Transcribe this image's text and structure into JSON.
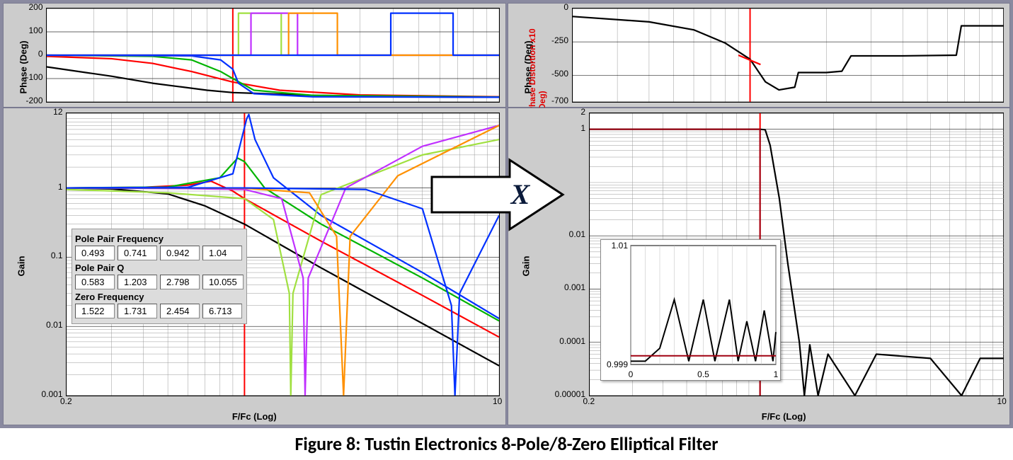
{
  "caption": "Figure 8: Tustin Electronics 8-Pole/8-Zero Elliptical Filter",
  "arrow_letter": "X",
  "colors": {
    "panel_bg": "#cccccc",
    "plot_bg": "#ffffff",
    "grid_major": "#000000",
    "grid_minor": "#aaaaaa",
    "axis_text": "#000000",
    "red_axis_text": "#e00000"
  },
  "series_colors": {
    "black": "#000000",
    "red": "#ff0000",
    "green": "#00b400",
    "blue": "#0030ff",
    "magenta": "#c030ff",
    "orange": "#ff9000",
    "lime": "#a0e040",
    "darkred": "#a00010"
  },
  "left_phase": {
    "title": "Phase (Deg)",
    "ylim": [
      -200,
      200
    ],
    "yticks": [
      -200,
      -100,
      0,
      100,
      200
    ],
    "xlim": [
      0.2,
      10
    ],
    "xscale": "log",
    "cursor_x": 1.0,
    "series": [
      {
        "color": "black",
        "pts": [
          [
            0.2,
            -50
          ],
          [
            0.35,
            -90
          ],
          [
            0.5,
            -120
          ],
          [
            0.8,
            -150
          ],
          [
            1,
            -160
          ],
          [
            2,
            -172
          ],
          [
            5,
            -178
          ],
          [
            10,
            -180
          ]
        ]
      },
      {
        "color": "red",
        "pts": [
          [
            0.2,
            -5
          ],
          [
            0.35,
            -15
          ],
          [
            0.5,
            -35
          ],
          [
            0.7,
            -70
          ],
          [
            1,
            -115
          ],
          [
            1.5,
            -150
          ],
          [
            3,
            -170
          ],
          [
            10,
            -178
          ]
        ]
      },
      {
        "color": "green",
        "pts": [
          [
            0.2,
            0
          ],
          [
            0.5,
            -5
          ],
          [
            0.7,
            -20
          ],
          [
            0.9,
            -70
          ],
          [
            1,
            -100
          ],
          [
            1.2,
            -150
          ],
          [
            2,
            -172
          ],
          [
            10,
            -179
          ]
        ]
      },
      {
        "color": "blue",
        "pts": [
          [
            0.2,
            0
          ],
          [
            0.7,
            -3
          ],
          [
            0.9,
            -20
          ],
          [
            1,
            -60
          ],
          [
            1.05,
            -120
          ],
          [
            1.2,
            -165
          ],
          [
            2,
            -178
          ],
          [
            10,
            -180
          ]
        ]
      },
      {
        "color": "lime",
        "pts": [
          [
            0.2,
            0
          ],
          [
            1,
            0
          ],
          [
            1.05,
            180
          ],
          [
            1.5,
            180
          ],
          [
            1.52,
            0
          ],
          [
            10,
            0
          ]
        ],
        "step": true
      },
      {
        "color": "magenta",
        "pts": [
          [
            0.2,
            0
          ],
          [
            1.15,
            0
          ],
          [
            1.17,
            180
          ],
          [
            1.73,
            180
          ],
          [
            1.75,
            0
          ],
          [
            10,
            0
          ]
        ],
        "step": true
      },
      {
        "color": "orange",
        "pts": [
          [
            0.2,
            0
          ],
          [
            1.6,
            0
          ],
          [
            1.62,
            180
          ],
          [
            2.45,
            180
          ],
          [
            2.47,
            0
          ],
          [
            10,
            0
          ]
        ],
        "step": true
      },
      {
        "color": "blue",
        "pts": [
          [
            0.2,
            0
          ],
          [
            3.9,
            0
          ],
          [
            3.92,
            180
          ],
          [
            6.7,
            180
          ],
          [
            6.72,
            0
          ],
          [
            10,
            0
          ]
        ],
        "step": true
      }
    ]
  },
  "left_gain": {
    "ylabel": "Gain",
    "xlabel": "F/Fc (Log)",
    "ylim": [
      0.001,
      12
    ],
    "yticks": [
      0.001,
      0.01,
      0.1,
      1,
      12
    ],
    "ytick_labels": [
      "0.001",
      "0.01",
      "0.1",
      "1",
      "12"
    ],
    "xlim": [
      0.2,
      10
    ],
    "xticks": [
      0.2,
      10
    ],
    "xscale": "log",
    "yscale": "log",
    "cursor_x": 1.0,
    "series": [
      {
        "color": "black",
        "pts": [
          [
            0.2,
            1
          ],
          [
            0.3,
            0.97
          ],
          [
            0.5,
            0.82
          ],
          [
            0.7,
            0.55
          ],
          [
            1,
            0.3
          ],
          [
            2,
            0.07
          ],
          [
            5,
            0.011
          ],
          [
            10,
            0.0027
          ]
        ]
      },
      {
        "color": "red",
        "pts": [
          [
            0.2,
            1
          ],
          [
            0.4,
            1.02
          ],
          [
            0.6,
            1.1
          ],
          [
            0.74,
            1.25
          ],
          [
            0.9,
            0.9
          ],
          [
            1,
            0.7
          ],
          [
            2,
            0.17
          ],
          [
            5,
            0.028
          ],
          [
            10,
            0.007
          ]
        ]
      },
      {
        "color": "green",
        "pts": [
          [
            0.2,
            1
          ],
          [
            0.5,
            1.03
          ],
          [
            0.8,
            1.4
          ],
          [
            0.94,
            2.7
          ],
          [
            1,
            2.4
          ],
          [
            1.2,
            1.0
          ],
          [
            2,
            0.3
          ],
          [
            5,
            0.05
          ],
          [
            10,
            0.012
          ]
        ]
      },
      {
        "color": "blue",
        "pts": [
          [
            0.2,
            1
          ],
          [
            0.6,
            1.02
          ],
          [
            0.9,
            1.6
          ],
          [
            1.02,
            10
          ],
          [
            1.04,
            11.5
          ],
          [
            1.1,
            5
          ],
          [
            1.3,
            1.4
          ],
          [
            2,
            0.4
          ],
          [
            5,
            0.06
          ],
          [
            10,
            0.013
          ]
        ]
      },
      {
        "color": "lime",
        "pts": [
          [
            0.2,
            0.95
          ],
          [
            0.5,
            0.85
          ],
          [
            1,
            0.7
          ],
          [
            1.3,
            0.35
          ],
          [
            1.5,
            0.03
          ],
          [
            1.52,
            0.001
          ],
          [
            1.55,
            0.03
          ],
          [
            2,
            0.8
          ],
          [
            5,
            3
          ],
          [
            10,
            5
          ]
        ]
      },
      {
        "color": "magenta",
        "pts": [
          [
            0.2,
            1
          ],
          [
            0.6,
            0.98
          ],
          [
            1,
            0.95
          ],
          [
            1.4,
            0.7
          ],
          [
            1.7,
            0.05
          ],
          [
            1.73,
            0.001
          ],
          [
            1.78,
            0.05
          ],
          [
            2.5,
            1
          ],
          [
            5,
            4
          ],
          [
            10,
            8
          ]
        ]
      },
      {
        "color": "orange",
        "pts": [
          [
            0.2,
            1
          ],
          [
            1,
            0.99
          ],
          [
            1.8,
            0.85
          ],
          [
            2.3,
            0.2
          ],
          [
            2.45,
            0.001
          ],
          [
            2.6,
            0.2
          ],
          [
            4,
            1.5
          ],
          [
            10,
            8
          ]
        ]
      },
      {
        "color": "blue",
        "pts": [
          [
            0.2,
            1
          ],
          [
            1,
            1
          ],
          [
            3,
            0.95
          ],
          [
            5,
            0.5
          ],
          [
            6.5,
            0.02
          ],
          [
            6.71,
            0.001
          ],
          [
            7,
            0.03
          ],
          [
            10,
            0.4
          ]
        ]
      }
    ],
    "table": {
      "rows": [
        {
          "label": "Pole Pair Frequency",
          "vals": [
            "0.493",
            "0.741",
            "0.942",
            "1.04"
          ]
        },
        {
          "label": "Pole Pair Q",
          "vals": [
            "0.583",
            "1.203",
            "2.798",
            "10.055"
          ]
        },
        {
          "label": "Zero Frequency",
          "vals": [
            "1.522",
            "1.731",
            "2.454",
            "6.713"
          ]
        }
      ]
    }
  },
  "right_phase": {
    "title": "Phase (Deg)",
    "title2": "Phase Distortion x10 (Deg)",
    "ylim": [
      -700,
      0
    ],
    "yticks": [
      -700,
      -500,
      -250,
      0
    ],
    "xlim": [
      0.2,
      10
    ],
    "xscale": "log",
    "cursor_x": 1.0,
    "series": [
      {
        "color": "black",
        "pts": [
          [
            0.2,
            -60
          ],
          [
            0.4,
            -100
          ],
          [
            0.6,
            -160
          ],
          [
            0.8,
            -260
          ],
          [
            1,
            -380
          ],
          [
            1.15,
            -550
          ],
          [
            1.3,
            -610
          ],
          [
            1.5,
            -590
          ],
          [
            1.55,
            -480
          ],
          [
            2.0,
            -480
          ],
          [
            2.3,
            -470
          ],
          [
            2.5,
            -355
          ],
          [
            4,
            -355
          ],
          [
            6.5,
            -350
          ],
          [
            6.8,
            -130
          ],
          [
            10,
            -130
          ]
        ]
      },
      {
        "color": "red",
        "pts": [
          [
            0.9,
            -350
          ],
          [
            1.1,
            -420
          ]
        ]
      }
    ]
  },
  "right_gain": {
    "ylabel": "Gain",
    "xlabel": "F/Fc (Log)",
    "ylim": [
      1e-05,
      2
    ],
    "yticks": [
      1e-05,
      0.0001,
      0.001,
      0.01,
      1,
      2
    ],
    "ytick_labels": [
      "0.00001",
      "0.0001",
      "0.001",
      "0.01",
      "1",
      "2"
    ],
    "xlim": [
      0.2,
      10
    ],
    "xscale": "log",
    "yscale": "log",
    "cursor_x": 1.0,
    "series": [
      {
        "color": "black",
        "pts": [
          [
            0.2,
            1
          ],
          [
            0.9,
            1
          ],
          [
            1,
            1
          ],
          [
            1.05,
            0.98
          ],
          [
            1.1,
            0.5
          ],
          [
            1.2,
            0.05
          ],
          [
            1.3,
            0.003
          ],
          [
            1.45,
            0.0001
          ],
          [
            1.52,
            1e-05
          ],
          [
            1.6,
            9e-05
          ],
          [
            1.73,
            1e-05
          ],
          [
            1.9,
            6e-05
          ],
          [
            2.45,
            1e-05
          ],
          [
            3,
            6e-05
          ],
          [
            5,
            5e-05
          ],
          [
            6.71,
            1e-05
          ],
          [
            8,
            5e-05
          ],
          [
            10,
            5e-05
          ]
        ]
      },
      {
        "color": "darkred",
        "pts": [
          [
            0.2,
            1.0
          ],
          [
            1.0,
            1.0
          ],
          [
            1.0,
            1e-05
          ]
        ],
        "step": true,
        "w": 2
      }
    ],
    "inset": {
      "xlim": [
        0,
        1
      ],
      "ylim": [
        0.999,
        1.01
      ],
      "xticks": [
        0,
        0.5,
        1
      ],
      "yticks": [
        0.999,
        1.01
      ],
      "ytick_labels": [
        "0.999",
        "1.01"
      ],
      "series": [
        {
          "color": "black",
          "pts": [
            [
              0,
              0.9993
            ],
            [
              0.1,
              0.9993
            ],
            [
              0.2,
              1.0005
            ],
            [
              0.3,
              1.005
            ],
            [
              0.4,
              0.9993
            ],
            [
              0.5,
              1.005
            ],
            [
              0.58,
              0.9993
            ],
            [
              0.68,
              1.005
            ],
            [
              0.74,
              0.9993
            ],
            [
              0.8,
              1.003
            ],
            [
              0.86,
              0.9993
            ],
            [
              0.92,
              1.004
            ],
            [
              0.98,
              0.9993
            ],
            [
              1,
              1.002
            ]
          ]
        },
        {
          "color": "darkred",
          "pts": [
            [
              0,
              0.9998
            ],
            [
              1,
              0.9998
            ]
          ]
        }
      ]
    }
  }
}
